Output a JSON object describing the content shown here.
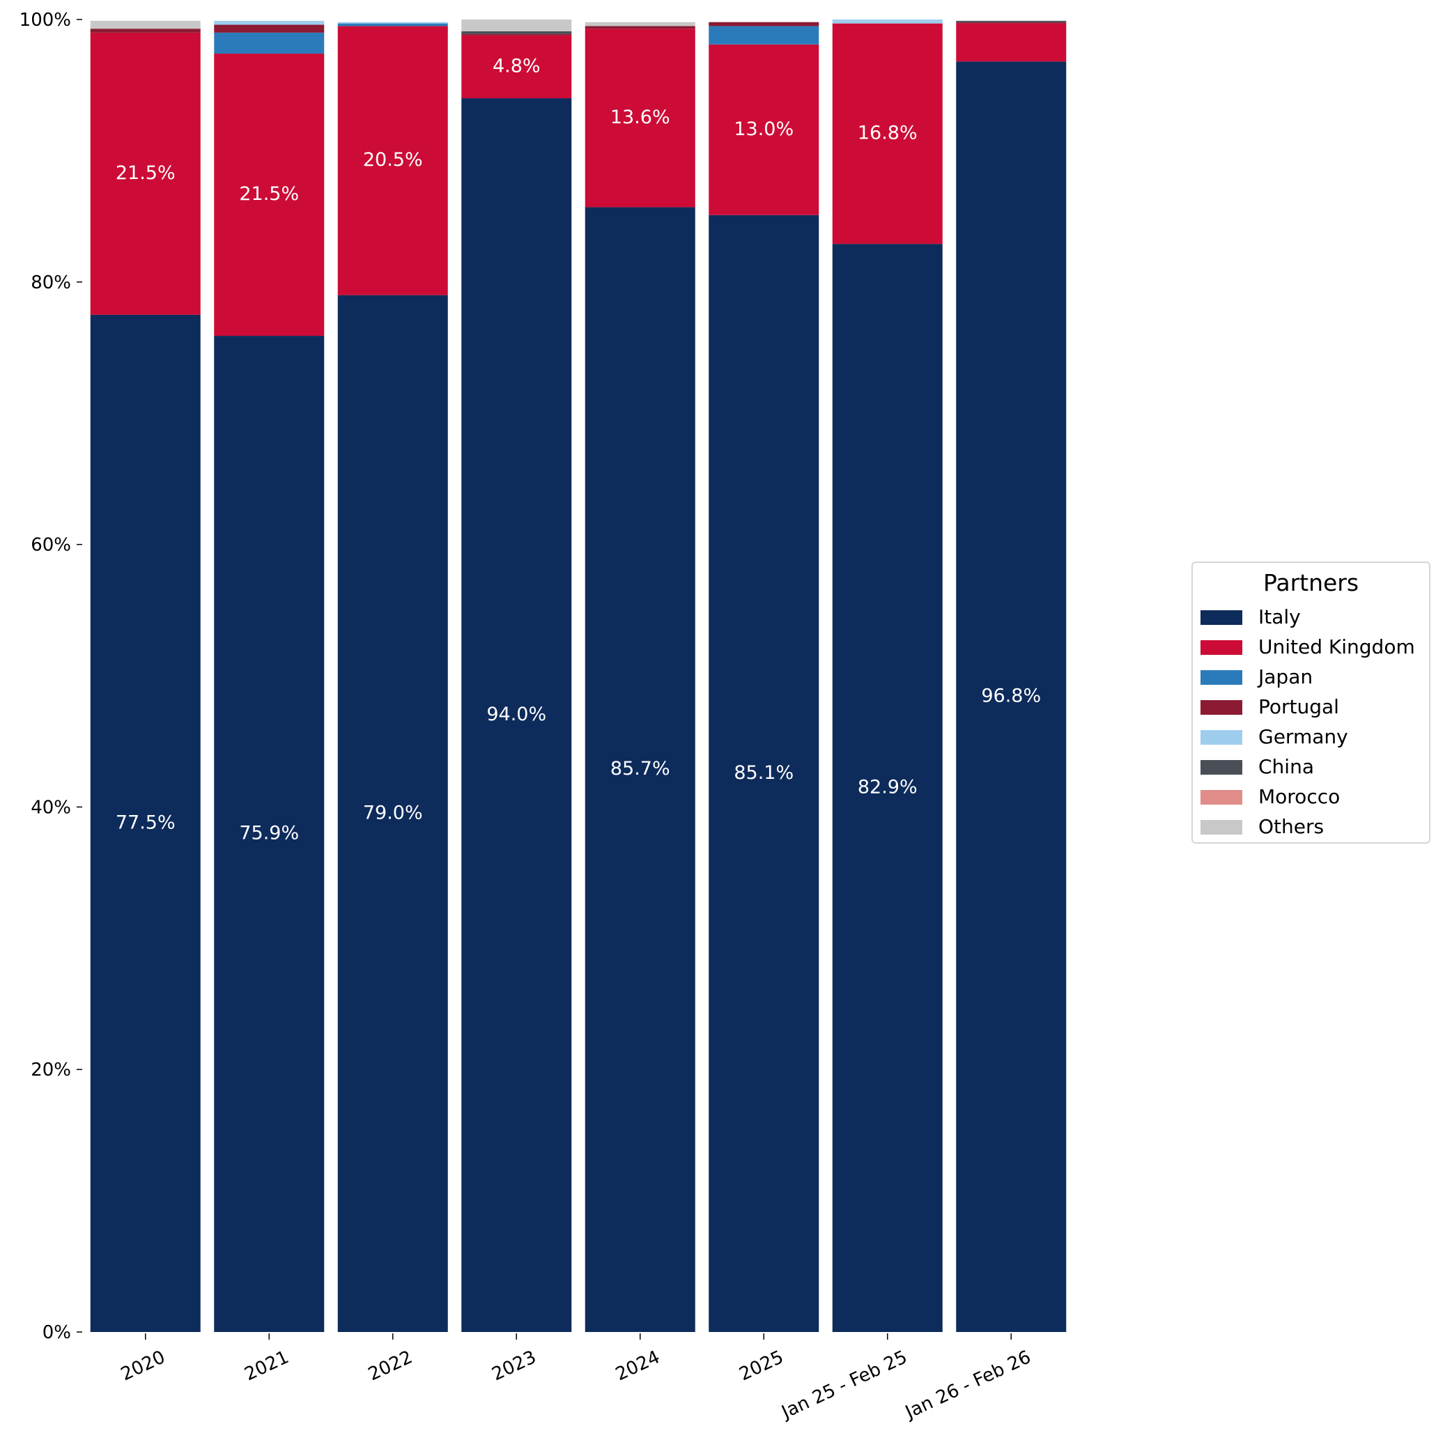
{
  "chart_data": {
    "type": "bar",
    "stacked": true,
    "normalized": true,
    "categories": [
      "2020",
      "2021",
      "2022",
      "2023",
      "2024",
      "2025",
      "Jan 25 - Feb 25",
      "Jan 26 - Feb 26"
    ],
    "series": [
      {
        "name": "Italy",
        "color": "#0d2b5b",
        "values": [
          77.5,
          75.9,
          79.0,
          94.0,
          85.7,
          85.1,
          82.9,
          96.8
        ]
      },
      {
        "name": "United Kingdom",
        "color": "#cc0c36",
        "values": [
          21.5,
          21.5,
          20.5,
          4.8,
          13.6,
          13.0,
          16.8,
          2.9
        ]
      },
      {
        "name": "Japan",
        "color": "#2b7bba",
        "values": [
          0.0,
          1.6,
          0.2,
          0.0,
          0.0,
          1.4,
          0.0,
          0.0
        ]
      },
      {
        "name": "Portugal",
        "color": "#8b1a32",
        "values": [
          0.3,
          0.6,
          0.0,
          0.1,
          0.2,
          0.3,
          0.0,
          0.1
        ]
      },
      {
        "name": "Germany",
        "color": "#9fcdee",
        "values": [
          0.0,
          0.3,
          0.1,
          0.0,
          0.0,
          0.0,
          0.3,
          0.0
        ]
      },
      {
        "name": "China",
        "color": "#4a4f57",
        "values": [
          0.0,
          0.0,
          0.0,
          0.2,
          0.0,
          0.0,
          0.0,
          0.1
        ]
      },
      {
        "name": "Morocco",
        "color": "#e08c88",
        "values": [
          0.0,
          0.0,
          0.0,
          0.0,
          0.0,
          0.0,
          0.0,
          0.0
        ]
      },
      {
        "name": "Others",
        "color": "#c8c8c8",
        "values": [
          0.6,
          0.0,
          0.0,
          0.9,
          0.3,
          0.0,
          0.0,
          0.0
        ]
      }
    ],
    "value_labels": [
      {
        "category": 0,
        "series": 0,
        "text": "77.5%"
      },
      {
        "category": 0,
        "series": 1,
        "text": "21.5%"
      },
      {
        "category": 1,
        "series": 0,
        "text": "75.9%"
      },
      {
        "category": 1,
        "series": 1,
        "text": "21.5%"
      },
      {
        "category": 2,
        "series": 0,
        "text": "79.0%"
      },
      {
        "category": 2,
        "series": 1,
        "text": "20.5%"
      },
      {
        "category": 3,
        "series": 0,
        "text": "94.0%"
      },
      {
        "category": 3,
        "series": 1,
        "text": "4.8%"
      },
      {
        "category": 4,
        "series": 0,
        "text": "85.7%"
      },
      {
        "category": 4,
        "series": 1,
        "text": "13.6%"
      },
      {
        "category": 5,
        "series": 0,
        "text": "85.1%"
      },
      {
        "category": 5,
        "series": 1,
        "text": "13.0%"
      },
      {
        "category": 6,
        "series": 0,
        "text": "82.9%"
      },
      {
        "category": 6,
        "series": 1,
        "text": "16.8%"
      },
      {
        "category": 7,
        "series": 0,
        "text": "96.8%"
      }
    ],
    "yticks": [
      "0%",
      "20%",
      "40%",
      "60%",
      "80%",
      "100%"
    ],
    "ylim": [
      0,
      100
    ],
    "legend": {
      "title": "Partners",
      "placement": "center-right"
    },
    "grid": false
  }
}
